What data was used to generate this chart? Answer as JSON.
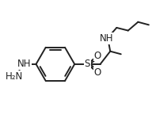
{
  "background_color": "#ffffff",
  "line_color": "#222222",
  "line_width": 1.4,
  "font_size": 8.5,
  "figsize": [
    1.92,
    1.69
  ],
  "dpi": 100,
  "xlim": [
    0.0,
    1.05
  ],
  "ylim": [
    0.05,
    0.95
  ]
}
